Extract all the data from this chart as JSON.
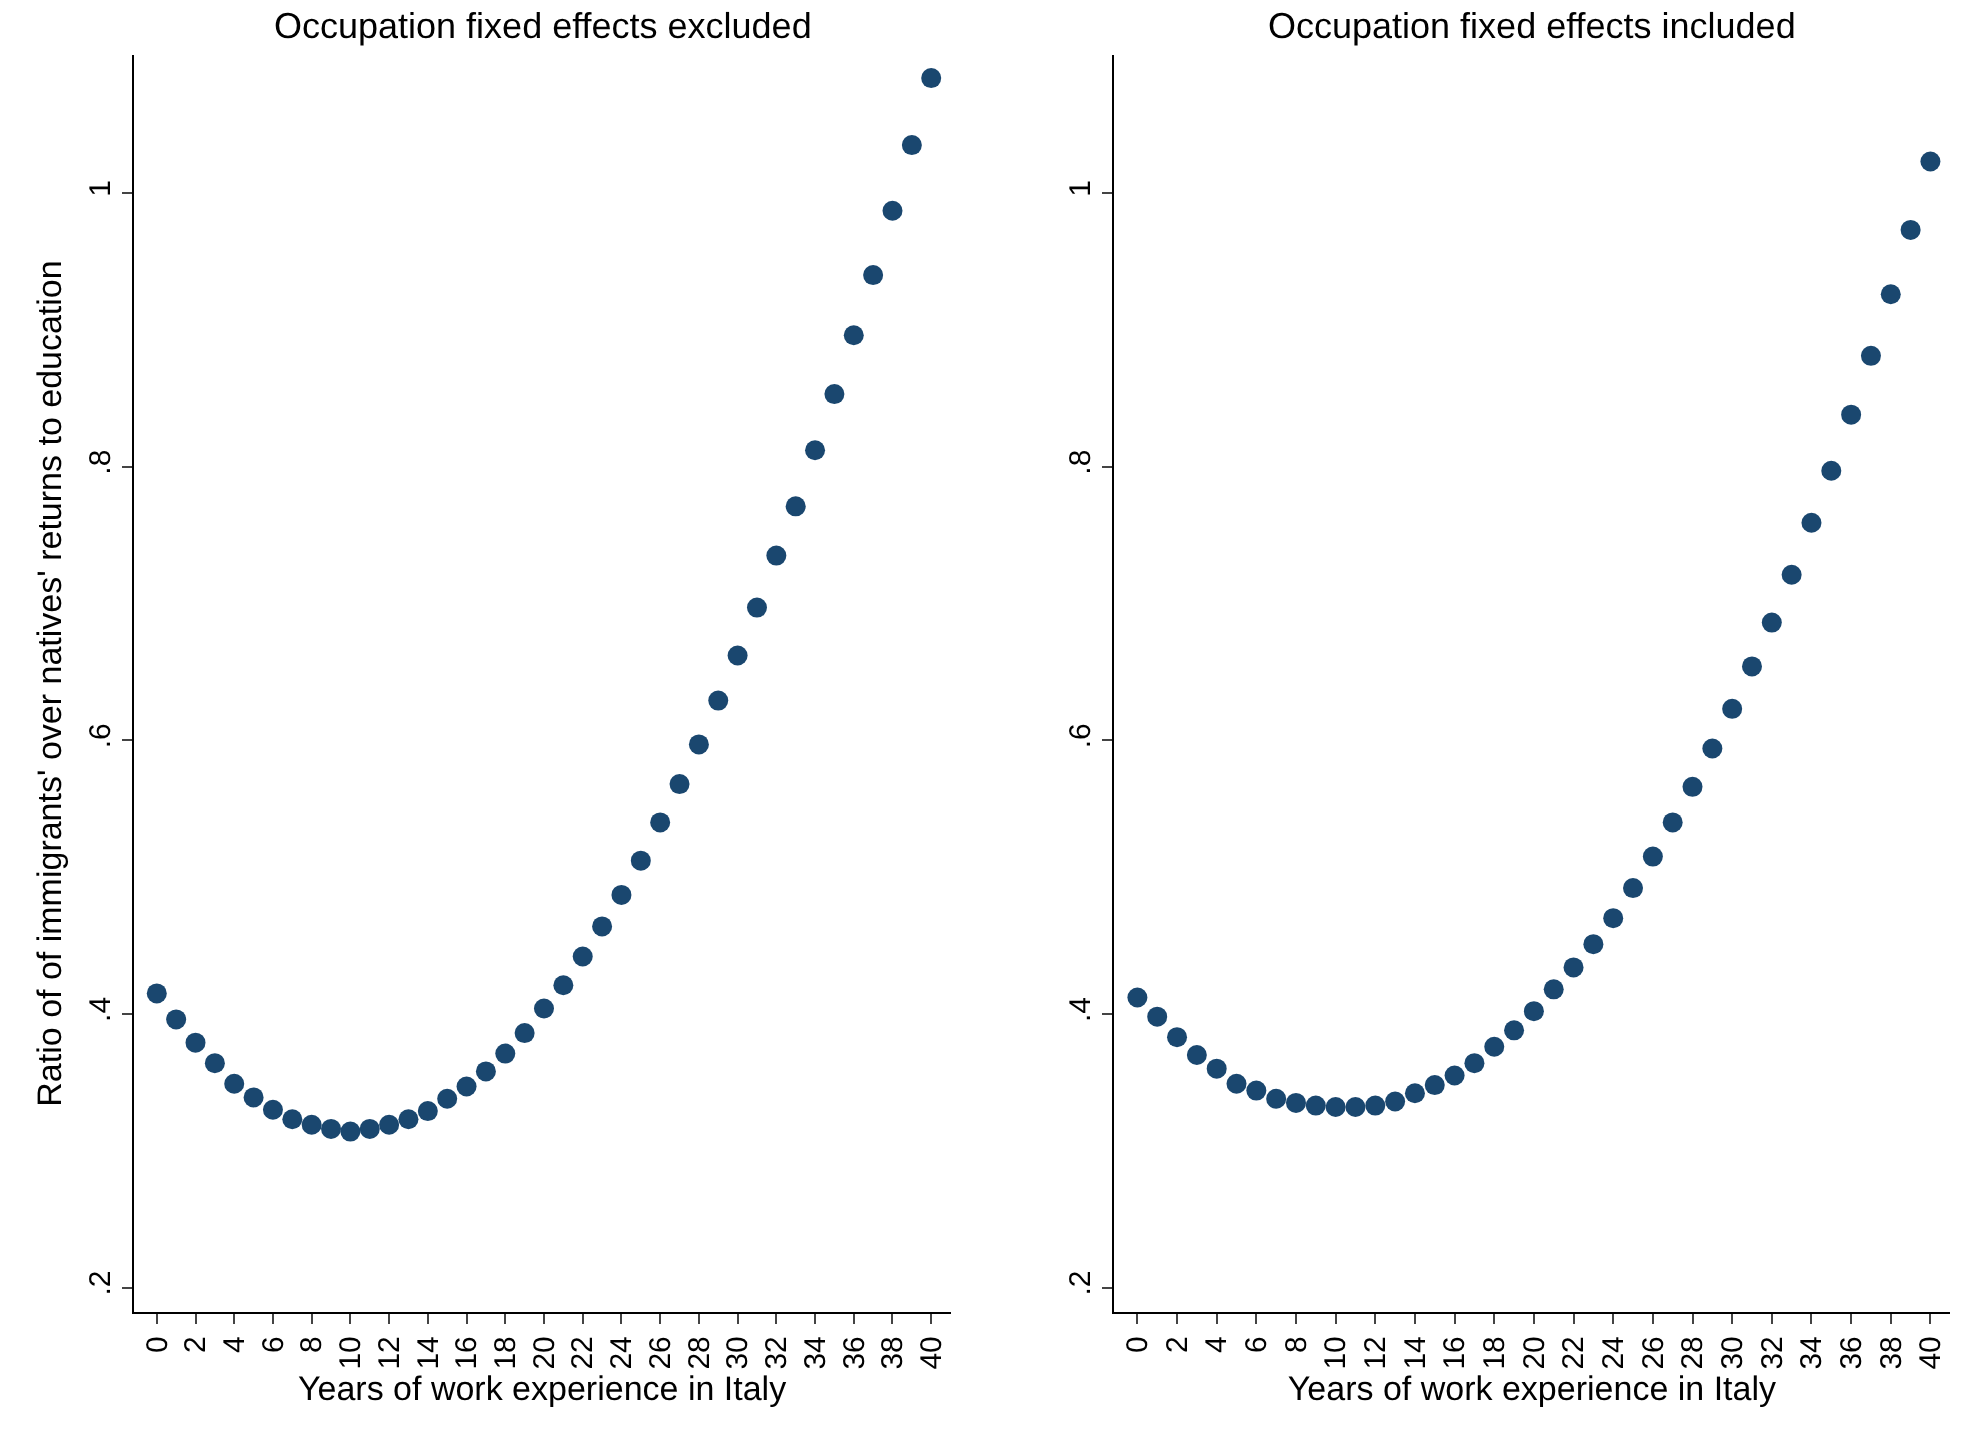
{
  "chart_data": [
    {
      "type": "scatter",
      "title": "Occupation fixed effects excluded",
      "xlabel": "Years of work experience in Italy",
      "ylabel": "Ratio of of immigrants' over natives' returns to education",
      "x": [
        0,
        1,
        2,
        3,
        4,
        5,
        6,
        7,
        8,
        9,
        10,
        11,
        12,
        13,
        14,
        15,
        16,
        17,
        18,
        19,
        20,
        21,
        22,
        23,
        24,
        25,
        26,
        27,
        28,
        29,
        30,
        31,
        32,
        33,
        34,
        35,
        36,
        37,
        38,
        39,
        40
      ],
      "series": [
        {
          "color": "#1a476f",
          "values": [
            0.415,
            0.396,
            0.379,
            0.364,
            0.349,
            0.339,
            0.33,
            0.323,
            0.319,
            0.316,
            0.314,
            0.316,
            0.319,
            0.323,
            0.329,
            0.338,
            0.347,
            0.358,
            0.371,
            0.386,
            0.404,
            0.421,
            0.442,
            0.464,
            0.487,
            0.512,
            0.54,
            0.568,
            0.597,
            0.629,
            0.662,
            0.697,
            0.735,
            0.771,
            0.812,
            0.853,
            0.896,
            0.94,
            0.987,
            1.035,
            1.084
          ]
        }
      ],
      "xlim": [
        -1.2,
        41
      ],
      "xticks": [
        0,
        2,
        4,
        6,
        8,
        10,
        12,
        14,
        16,
        18,
        20,
        22,
        24,
        26,
        28,
        30,
        32,
        34,
        36,
        38,
        40
      ],
      "ylim": [
        0.182,
        1.101
      ],
      "yticks": [
        {
          "value": 0.2,
          "label": ".2"
        },
        {
          "value": 0.4,
          "label": ".4"
        },
        {
          "value": 0.6,
          "label": ".6"
        },
        {
          "value": 0.8,
          "label": ".8"
        },
        {
          "value": 1,
          "label": "1"
        }
      ],
      "marker": "circle"
    },
    {
      "type": "scatter",
      "title": "Occupation fixed effects included",
      "xlabel": "Years of work experience in Italy",
      "x": [
        0,
        1,
        2,
        3,
        4,
        5,
        6,
        7,
        8,
        9,
        10,
        11,
        12,
        13,
        14,
        15,
        16,
        17,
        18,
        19,
        20,
        21,
        22,
        23,
        24,
        25,
        26,
        27,
        28,
        29,
        30,
        31,
        32,
        33,
        34,
        35,
        36,
        37,
        38,
        39,
        40
      ],
      "series": [
        {
          "color": "#1a476f",
          "values": [
            0.412,
            0.398,
            0.383,
            0.37,
            0.36,
            0.349,
            0.344,
            0.338,
            0.335,
            0.333,
            0.332,
            0.332,
            0.333,
            0.336,
            0.342,
            0.348,
            0.355,
            0.364,
            0.376,
            0.388,
            0.402,
            0.418,
            0.434,
            0.451,
            0.47,
            0.492,
            0.515,
            0.54,
            0.566,
            0.594,
            0.623,
            0.654,
            0.686,
            0.721,
            0.759,
            0.797,
            0.838,
            0.881,
            0.926,
            0.973,
            1.023
          ]
        }
      ],
      "xlim": [
        -1.2,
        41
      ],
      "xticks": [
        0,
        2,
        4,
        6,
        8,
        10,
        12,
        14,
        16,
        18,
        20,
        22,
        24,
        26,
        28,
        30,
        32,
        34,
        36,
        38,
        40
      ],
      "ylim": [
        0.182,
        1.101
      ],
      "yticks": [
        {
          "value": 0.2,
          "label": ".2"
        },
        {
          "value": 0.4,
          "label": ".4"
        },
        {
          "value": 0.6,
          "label": ".6"
        },
        {
          "value": 0.8,
          "label": ".8"
        },
        {
          "value": 1,
          "label": "1"
        }
      ],
      "marker": "circle"
    }
  ]
}
